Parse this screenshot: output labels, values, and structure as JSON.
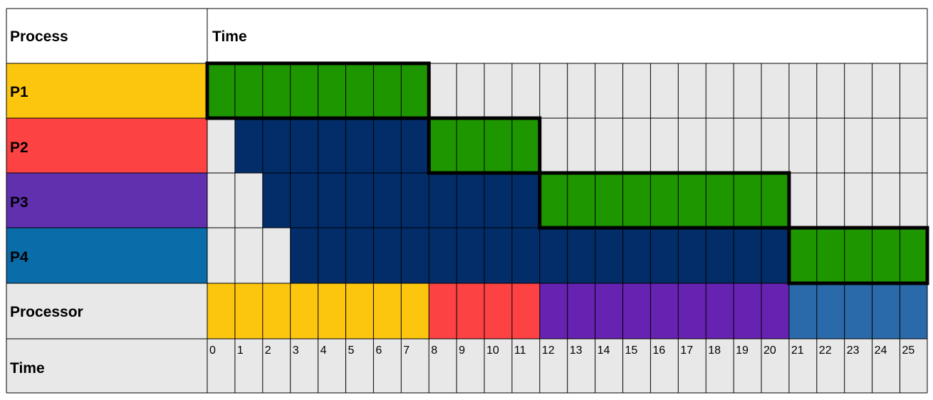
{
  "header": {
    "process_label": "Process",
    "time_label": "Time"
  },
  "rows": [
    {
      "name": "P1",
      "label_color": "#FDC60E",
      "arrival": 0,
      "start": 0,
      "end": 8,
      "processor_color": "#FDC60E"
    },
    {
      "name": "P2",
      "label_color": "#FD4244",
      "arrival": 1,
      "start": 8,
      "end": 12,
      "processor_color": "#FD4244"
    },
    {
      "name": "P3",
      "label_color": "#6030AE",
      "arrival": 2,
      "start": 12,
      "end": 21,
      "processor_color": "#6622B0"
    },
    {
      "name": "P4",
      "label_color": "#0A6CA8",
      "arrival": 3,
      "start": 21,
      "end": 26,
      "processor_color": "#2A6AAA"
    }
  ],
  "processor_label": "Processor",
  "time_row_label": "Time",
  "time_ticks": [
    "0",
    "1",
    "2",
    "3",
    "4",
    "5",
    "6",
    "7",
    "8",
    "9",
    "10",
    "11",
    "12",
    "13",
    "14",
    "15",
    "16",
    "17",
    "18",
    "19",
    "20",
    "21",
    "22",
    "23",
    "24",
    "25"
  ],
  "colors": {
    "running": "#1E9600",
    "waiting": "#022D69",
    "idle": "#E8E8E8",
    "grid": "#000000"
  },
  "legend": "none"
}
